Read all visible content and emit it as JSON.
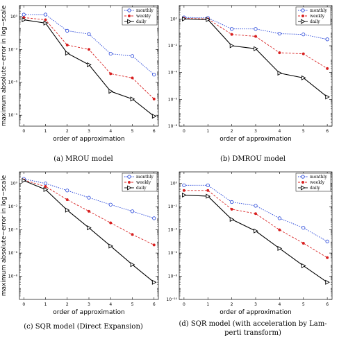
{
  "chart_data": [
    {
      "type": "line",
      "panel_label": "(a)",
      "caption_lines": [
        "(a)  MROU model"
      ],
      "xlabel": "order of approximation",
      "ylabel": "maximum absolute−error in log−scale",
      "yscale": "log",
      "x": [
        0,
        1,
        2,
        3,
        4,
        5,
        6
      ],
      "xlim": [
        -0.2,
        6.2
      ],
      "y_exp_range": [
        -10,
        1
      ],
      "y_ticks": [
        {
          "exp": 0,
          "label": "10⁰"
        },
        {
          "exp": -3,
          "label": "10⁻³"
        },
        {
          "exp": -6,
          "label": "10⁻⁶"
        },
        {
          "exp": -9,
          "label": "10⁻⁹"
        }
      ],
      "legend_position": "top-right",
      "series": [
        {
          "name": "monthly",
          "color": "#1f3fd8",
          "style": "dotted",
          "marker": "circle",
          "values": [
            1.5,
            1.5,
            0.05,
            0.025,
            0.0004,
            0.00025,
            5e-06
          ]
        },
        {
          "name": "weekly",
          "color": "#d81f1f",
          "style": "dashed",
          "marker": "dot",
          "values": [
            0.8,
            0.5,
            0.0025,
            0.001,
            6e-06,
            2.5e-06,
            3e-08
          ]
        },
        {
          "name": "daily",
          "color": "#000000",
          "style": "solid",
          "marker": "triangle",
          "values": [
            0.5,
            0.25,
            0.00045,
            4e-05,
            1.5e-07,
            3e-08,
            8e-10
          ]
        }
      ]
    },
    {
      "type": "line",
      "panel_label": "(b)",
      "caption_lines": [
        "(b)  DMROU model"
      ],
      "xlabel": "order of approximation",
      "ylabel": "",
      "yscale": "log",
      "x": [
        0,
        1,
        2,
        3,
        4,
        5,
        6
      ],
      "xlim": [
        -0.2,
        6.2
      ],
      "y_exp_range": [
        -8,
        1
      ],
      "y_ticks": [
        {
          "exp": 0,
          "label": "10⁰"
        },
        {
          "exp": -2,
          "label": "10⁻²"
        },
        {
          "exp": -4,
          "label": "10⁻⁴"
        },
        {
          "exp": -6,
          "label": "10⁻⁶"
        },
        {
          "exp": -8,
          "label": "10⁻⁸"
        }
      ],
      "legend_position": "top-right",
      "series": [
        {
          "name": "monthly",
          "color": "#1f3fd8",
          "style": "dotted",
          "marker": "circle",
          "values": [
            1.3,
            1.2,
            0.18,
            0.18,
            0.08,
            0.07,
            0.03
          ]
        },
        {
          "name": "weekly",
          "color": "#d81f1f",
          "style": "dashed",
          "marker": "dot",
          "values": [
            1.1,
            1.0,
            0.07,
            0.05,
            0.003,
            0.0025,
            0.0002
          ]
        },
        {
          "name": "daily",
          "color": "#000000",
          "style": "solid",
          "marker": "triangle",
          "values": [
            1.0,
            0.9,
            0.01,
            0.006,
            9e-05,
            4e-05,
            1.5e-06
          ]
        }
      ]
    },
    {
      "type": "line",
      "panel_label": "(c)",
      "caption_lines": [
        "(c)  SQR model (Direct Expansion)"
      ],
      "xlabel": "order of approximation",
      "ylabel": "maximum absolute−error in log−scale",
      "yscale": "log",
      "x": [
        0,
        1,
        2,
        3,
        4,
        5,
        6
      ],
      "xlim": [
        -0.2,
        6.2
      ],
      "y_exp_range": [
        -10,
        1
      ],
      "y_ticks": [
        {
          "exp": 0,
          "label": "10⁰"
        },
        {
          "exp": -2,
          "label": "10⁻²"
        },
        {
          "exp": -4,
          "label": "10⁻⁴"
        },
        {
          "exp": -6,
          "label": "10⁻⁶"
        },
        {
          "exp": -8,
          "label": "10⁻⁸"
        }
      ],
      "legend_position": "top-right",
      "series": [
        {
          "name": "monthly",
          "color": "#1f3fd8",
          "style": "dotted",
          "marker": "circle",
          "values": [
            2.5,
            1.0,
            0.25,
            0.06,
            0.015,
            0.004,
            0.001
          ]
        },
        {
          "name": "weekly",
          "color": "#d81f1f",
          "style": "dashed",
          "marker": "dot",
          "values": [
            2.0,
            0.55,
            0.04,
            0.004,
            0.0004,
            4e-05,
            5e-06
          ]
        },
        {
          "name": "daily",
          "color": "#000000",
          "style": "solid",
          "marker": "triangle",
          "values": [
            1.8,
            0.3,
            0.005,
            0.00015,
            4e-06,
            1e-07,
            3e-09
          ]
        }
      ]
    },
    {
      "type": "line",
      "panel_label": "(d)",
      "caption_lines": [
        "(d)  SQR model (with acceleration by Lam-",
        "perti transform)"
      ],
      "xlabel": "order of approximation",
      "ylabel": "",
      "yscale": "log",
      "x": [
        0,
        1,
        2,
        3,
        4,
        5,
        6
      ],
      "xlim": [
        -0.2,
        6.2
      ],
      "y_exp_range": [
        -10,
        1
      ],
      "y_ticks": [
        {
          "exp": 0,
          "label": "10⁰"
        },
        {
          "exp": -2,
          "label": "10⁻²"
        },
        {
          "exp": -4,
          "label": "10⁻⁴"
        },
        {
          "exp": -6,
          "label": "10⁻⁶"
        },
        {
          "exp": -8,
          "label": "10⁻⁸"
        },
        {
          "exp": -10,
          "label": "10⁻¹⁰"
        }
      ],
      "legend_position": "top-right",
      "series": [
        {
          "name": "monthly",
          "color": "#1f3fd8",
          "style": "dotted",
          "marker": "circle",
          "values": [
            0.7,
            0.7,
            0.025,
            0.012,
            0.001,
            0.00015,
            1e-05
          ]
        },
        {
          "name": "weekly",
          "color": "#d81f1f",
          "style": "dashed",
          "marker": "dot",
          "values": [
            0.25,
            0.25,
            0.006,
            0.0025,
            0.0001,
            7e-06,
            4e-07
          ]
        },
        {
          "name": "daily",
          "color": "#000000",
          "style": "solid",
          "marker": "triangle",
          "values": [
            0.1,
            0.08,
            0.0008,
            8e-05,
            2.5e-06,
            8e-08,
            3e-09
          ]
        }
      ]
    }
  ]
}
